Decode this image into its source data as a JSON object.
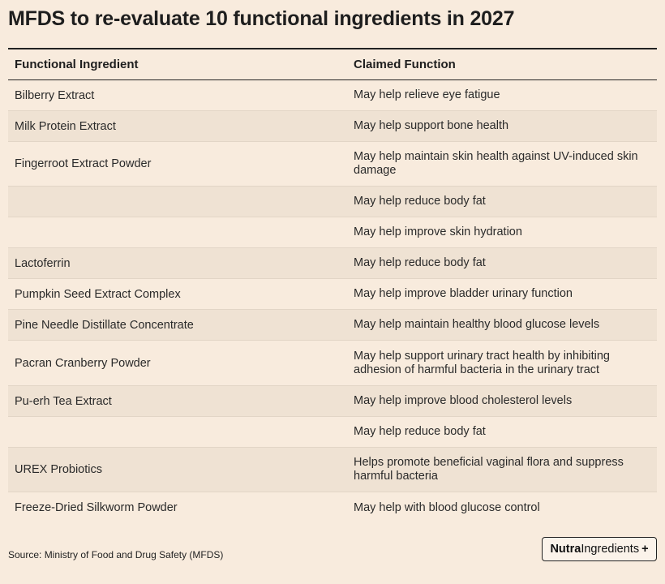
{
  "title": "MFDS to re-evaluate 10 functional ingredients in 2027",
  "table": {
    "headers": [
      "Functional Ingredient",
      "Claimed Function"
    ],
    "rows": [
      {
        "ingredient": "Bilberry Extract",
        "function": "May help relieve eye fatigue"
      },
      {
        "ingredient": "Milk Protein Extract",
        "function": "May help support bone health"
      },
      {
        "ingredient": "Fingerroot Extract Powder",
        "function": "May help maintain skin health against UV-induced skin damage"
      },
      {
        "ingredient": "",
        "function": "May help reduce body fat"
      },
      {
        "ingredient": "",
        "function": "May help improve skin hydration"
      },
      {
        "ingredient": "Lactoferrin",
        "function": "May help reduce body fat"
      },
      {
        "ingredient": "Pumpkin Seed Extract Complex",
        "function": "May help improve bladder urinary function"
      },
      {
        "ingredient": "Pine Needle Distillate Concentrate",
        "function": "May help maintain healthy blood glucose levels"
      },
      {
        "ingredient": "Pacran Cranberry Powder",
        "function": "May help support urinary tract health by inhibiting adhesion of harmful bacteria in the urinary tract"
      },
      {
        "ingredient": "Pu-erh Tea Extract",
        "function": "May help improve blood cholesterol levels"
      },
      {
        "ingredient": "",
        "function": "May help reduce body fat"
      },
      {
        "ingredient": "UREX Probiotics",
        "function": "Helps promote beneficial vaginal flora and suppress harmful bacteria"
      },
      {
        "ingredient": "Freeze-Dried Silkworm Powder",
        "function": "May help with blood glucose control"
      }
    ]
  },
  "source": "Source: Ministry of Food and Drug Safety (MFDS)",
  "logo": {
    "bold": "Nutra",
    "regular": "Ingredients",
    "suffix": "+"
  },
  "colors": {
    "background": "#f8ebdd",
    "row_alt": "#efe2d3",
    "text": "#222222"
  }
}
